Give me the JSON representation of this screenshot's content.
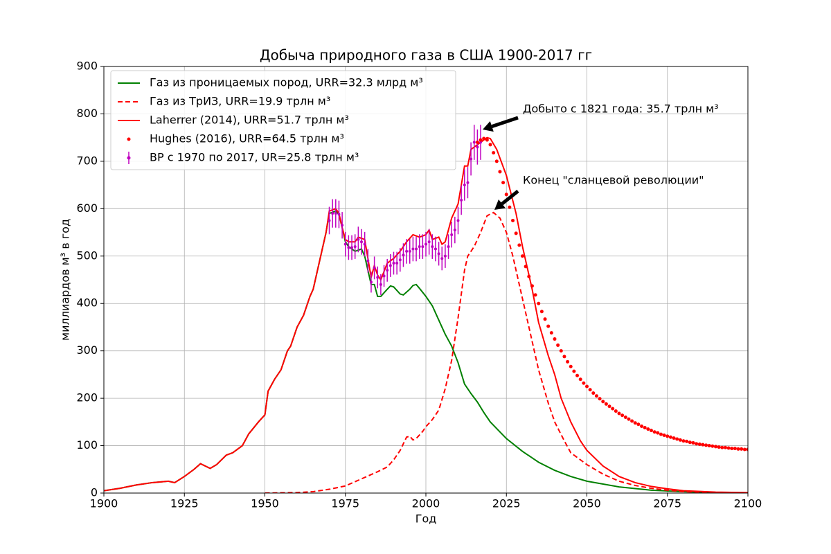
{
  "chart_data": {
    "type": "line",
    "title": "Добыча природного газа в США 1900-2017 гг",
    "xlabel": "Год",
    "ylabel": "миллиардов м³ в год",
    "xlim": [
      1900,
      2100
    ],
    "xticks": [
      1900,
      1925,
      1950,
      1975,
      2000,
      2025,
      2050,
      2075,
      2100
    ],
    "ylim": [
      0,
      900
    ],
    "yticks": [
      0,
      100,
      200,
      300,
      400,
      500,
      600,
      700,
      800,
      900
    ],
    "grid": true,
    "legend": "upper left",
    "series": [
      {
        "name": "Газ из проницаемых пород, URR=32.3 млрд м³",
        "color": "#008000",
        "style": "solid",
        "x": [
          1900,
          1905,
          1910,
          1915,
          1920,
          1922,
          1925,
          1928,
          1930,
          1933,
          1935,
          1938,
          1940,
          1943,
          1945,
          1948,
          1950,
          1951,
          1953,
          1955,
          1957,
          1958,
          1960,
          1962,
          1964,
          1965,
          1967,
          1969,
          1970,
          1972,
          1973,
          1974,
          1975,
          1976,
          1978,
          1980,
          1981,
          1982,
          1983,
          1984,
          1985,
          1986,
          1988,
          1989,
          1990,
          1992,
          1993,
          1995,
          1996,
          1997,
          1998,
          2000,
          2002,
          2004,
          2006,
          2008,
          2010,
          2012,
          2014,
          2016,
          2018,
          2020,
          2025,
          2030,
          2035,
          2040,
          2045,
          2050,
          2060,
          2070,
          2080,
          2090,
          2100
        ],
        "values": [
          5,
          10,
          17,
          22,
          25,
          22,
          35,
          50,
          62,
          52,
          60,
          80,
          85,
          100,
          125,
          150,
          165,
          215,
          240,
          260,
          300,
          310,
          350,
          375,
          415,
          430,
          490,
          550,
          590,
          595,
          588,
          560,
          530,
          520,
          510,
          515,
          500,
          470,
          440,
          440,
          415,
          415,
          430,
          437,
          435,
          420,
          418,
          430,
          438,
          440,
          432,
          415,
          395,
          365,
          335,
          310,
          275,
          230,
          210,
          192,
          170,
          150,
          115,
          88,
          65,
          48,
          35,
          25,
          13,
          6,
          3,
          1,
          0.5
        ]
      },
      {
        "name": "Газ из ТрИЗ, URR=19.9 трлн м³",
        "color": "#ff0000",
        "style": "dashed",
        "x": [
          1950,
          1960,
          1965,
          1970,
          1975,
          1980,
          1985,
          1988,
          1990,
          1992,
          1994,
          1995,
          1996,
          1997,
          1999,
          2000,
          2002,
          2004,
          2006,
          2008,
          2010,
          2011,
          2012,
          2013,
          2015,
          2017,
          2019,
          2021,
          2023,
          2025,
          2027,
          2030,
          2033,
          2035,
          2038,
          2040,
          2043,
          2045,
          2050,
          2055,
          2060,
          2065,
          2070,
          2075,
          2080,
          2090,
          2100
        ],
        "values": [
          0,
          1,
          3,
          8,
          15,
          30,
          45,
          55,
          70,
          90,
          118,
          120,
          112,
          115,
          130,
          140,
          155,
          175,
          220,
          280,
          370,
          420,
          470,
          500,
          520,
          550,
          585,
          592,
          580,
          550,
          500,
          410,
          320,
          260,
          190,
          150,
          110,
          85,
          60,
          40,
          25,
          16,
          10,
          6,
          3,
          1,
          0.5
        ]
      },
      {
        "name": "Laherrer (2014), URR=51.7 трлн м³",
        "color": "#ff0000",
        "style": "solid",
        "x": [
          1900,
          1905,
          1910,
          1915,
          1920,
          1922,
          1925,
          1928,
          1930,
          1933,
          1935,
          1938,
          1940,
          1943,
          1945,
          1948,
          1950,
          1951,
          1953,
          1955,
          1957,
          1958,
          1960,
          1962,
          1964,
          1965,
          1967,
          1969,
          1970,
          1972,
          1973,
          1974,
          1975,
          1976,
          1978,
          1979,
          1981,
          1982,
          1983,
          1984,
          1985,
          1986,
          1988,
          1990,
          1992,
          1994,
          1996,
          1998,
          2000,
          2001,
          2002,
          2004,
          2005,
          2006,
          2008,
          2010,
          2011,
          2012,
          2013,
          2014,
          2016,
          2018,
          2019,
          2020,
          2022,
          2025,
          2028,
          2030,
          2033,
          2035,
          2038,
          2040,
          2042,
          2045,
          2048,
          2050,
          2055,
          2060,
          2065,
          2070,
          2075,
          2080,
          2090,
          2100
        ],
        "values": [
          5,
          10,
          17,
          22,
          25,
          22,
          35,
          50,
          62,
          52,
          60,
          80,
          85,
          100,
          125,
          150,
          165,
          215,
          240,
          260,
          300,
          310,
          350,
          375,
          415,
          430,
          490,
          550,
          595,
          600,
          590,
          560,
          535,
          530,
          530,
          540,
          535,
          495,
          455,
          480,
          460,
          450,
          485,
          495,
          510,
          530,
          545,
          540,
          545,
          555,
          535,
          540,
          525,
          530,
          580,
          610,
          650,
          690,
          690,
          725,
          735,
          745,
          750,
          748,
          725,
          670,
          590,
          520,
          430,
          360,
          290,
          250,
          200,
          150,
          110,
          90,
          57,
          35,
          22,
          14,
          9,
          5,
          2,
          1
        ]
      },
      {
        "name": "Hughes (2016), URR=64.5 трлн м³",
        "color": "#ff0000",
        "style": "dots",
        "x": [
          2016,
          2017,
          2018,
          2019,
          2020,
          2021,
          2022,
          2023,
          2024,
          2025,
          2026,
          2027,
          2028,
          2029,
          2030,
          2031,
          2032,
          2033,
          2034,
          2035,
          2036,
          2037,
          2038,
          2039,
          2040,
          2041,
          2042,
          2043,
          2044,
          2045,
          2046,
          2047,
          2048,
          2049,
          2050,
          2051,
          2052,
          2053,
          2054,
          2055,
          2056,
          2057,
          2058,
          2059,
          2060,
          2061,
          2062,
          2063,
          2064,
          2065,
          2066,
          2067,
          2068,
          2069,
          2070,
          2071,
          2072,
          2073,
          2074,
          2075,
          2076,
          2077,
          2078,
          2079,
          2080,
          2081,
          2082,
          2083,
          2084,
          2085,
          2086,
          2087,
          2088,
          2089,
          2090,
          2091,
          2092,
          2093,
          2094,
          2095,
          2096,
          2097,
          2098,
          2099,
          2100
        ],
        "values": [
          740,
          745,
          748,
          745,
          735,
          718,
          700,
          678,
          655,
          630,
          603,
          575,
          548,
          523,
          500,
          478,
          457,
          437,
          418,
          400,
          383,
          367,
          352,
          338,
          325,
          312,
          300,
          288,
          277,
          267,
          257,
          248,
          240,
          232,
          225,
          218,
          211,
          205,
          199,
          193,
          188,
          183,
          178,
          173,
          168,
          164,
          160,
          156,
          152,
          148,
          145,
          141,
          138,
          135,
          132,
          129,
          127,
          124,
          122,
          120,
          118,
          116,
          114,
          112,
          110,
          109,
          107,
          106,
          104,
          103,
          102,
          101,
          100,
          99,
          98,
          97,
          96,
          96,
          95,
          94,
          94,
          93,
          93,
          92,
          92
        ]
      },
      {
        "name": "BP с 1970 по 2017, UR=25.8 трлн м³",
        "color": "#bf00bf",
        "style": "errorbar",
        "x": [
          1970,
          1971,
          1972,
          1973,
          1974,
          1975,
          1976,
          1977,
          1978,
          1979,
          1980,
          1981,
          1982,
          1983,
          1984,
          1985,
          1986,
          1987,
          1988,
          1989,
          1990,
          1991,
          1992,
          1993,
          1994,
          1995,
          1996,
          1997,
          1998,
          1999,
          2000,
          2001,
          2002,
          2003,
          2004,
          2005,
          2006,
          2007,
          2008,
          2009,
          2010,
          2011,
          2012,
          2013,
          2014,
          2015,
          2016,
          2017
        ],
        "values": [
          575,
          590,
          590,
          588,
          565,
          525,
          518,
          518,
          520,
          535,
          530,
          525,
          490,
          445,
          475,
          455,
          440,
          458,
          470,
          480,
          485,
          485,
          492,
          502,
          510,
          510,
          515,
          515,
          520,
          520,
          525,
          530,
          520,
          515,
          505,
          495,
          500,
          520,
          545,
          555,
          575,
          618,
          650,
          655,
          705,
          740,
          730,
          740
        ],
        "errors": [
          29,
          30,
          30,
          29,
          28,
          26,
          26,
          26,
          26,
          27,
          27,
          26,
          25,
          22,
          24,
          23,
          22,
          23,
          24,
          24,
          24,
          24,
          25,
          25,
          26,
          26,
          26,
          26,
          26,
          26,
          26,
          27,
          26,
          26,
          25,
          25,
          25,
          26,
          27,
          28,
          29,
          31,
          33,
          33,
          35,
          37,
          37,
          37
        ]
      }
    ],
    "annotations": [
      {
        "text": "Добыто с 1821 года: 35.7 трлн м³"
      },
      {
        "text": "Конец \"сланцевой революции\""
      }
    ]
  }
}
